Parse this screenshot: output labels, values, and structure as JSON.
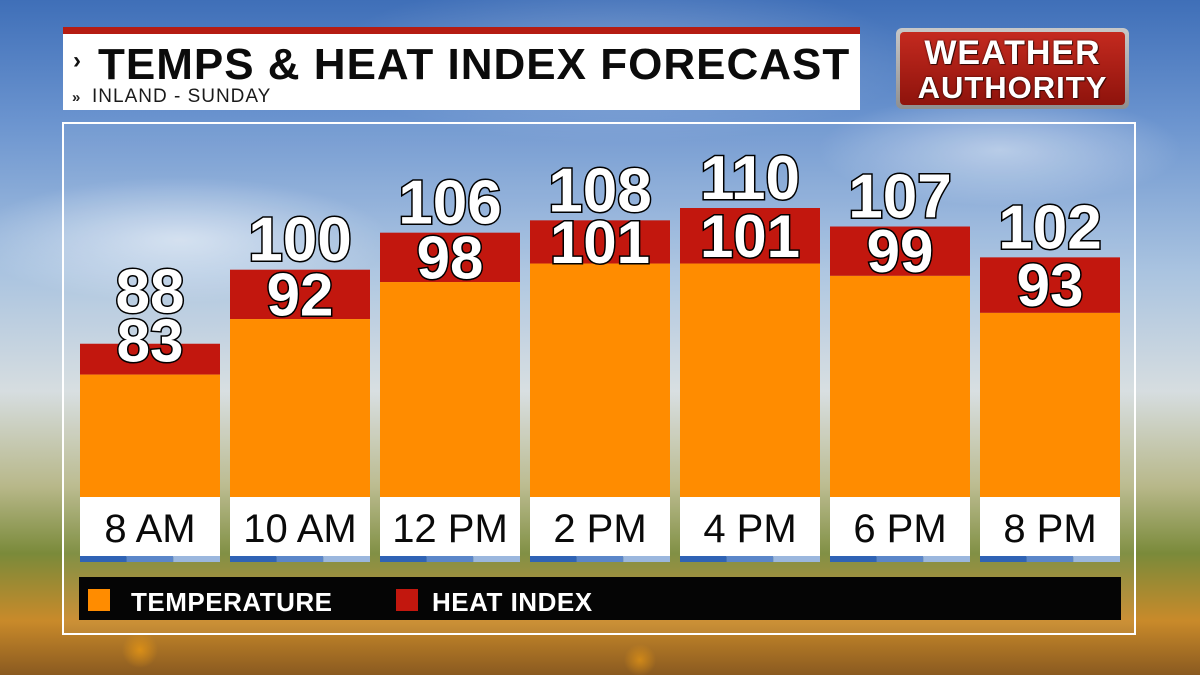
{
  "header": {
    "title": "TEMPS & HEAT INDEX FORECAST",
    "subtitle": "INLAND - SUNDAY",
    "chevron_icon": "chevron-right-icon",
    "double_chevron_icon": "double-chevron-right-icon"
  },
  "logo": {
    "line1": "WEATHER",
    "line2": "AUTHORITY"
  },
  "legend": {
    "temperature": "TEMPERATURE",
    "heat_index": "HEAT INDEX"
  },
  "colors": {
    "temperature": "#ff8c00",
    "heat_index": "#c2170e",
    "label_box": "#ffffff",
    "accent_blue": "#2f63b5"
  },
  "chart_data": {
    "type": "bar",
    "categories": [
      "8 AM",
      "10 AM",
      "12 PM",
      "2 PM",
      "4 PM",
      "6 PM",
      "8 PM"
    ],
    "series": [
      {
        "name": "TEMPERATURE",
        "values": [
          83,
          92,
          98,
          101,
          101,
          99,
          93
        ]
      },
      {
        "name": "HEAT INDEX",
        "values": [
          88,
          100,
          106,
          108,
          110,
          107,
          102
        ]
      }
    ],
    "legend_position": "bottom",
    "grid": false
  }
}
